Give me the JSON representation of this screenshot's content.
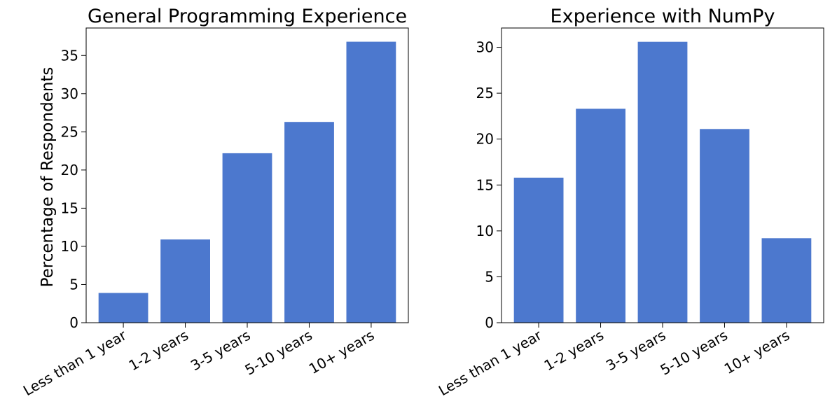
{
  "chart_data": [
    {
      "type": "bar",
      "title": "General Programming Experience",
      "xlabel": "",
      "ylabel": "Percentage of Respondents",
      "categories": [
        "Less than 1 year",
        "1-2 years",
        "3-5 years",
        "5-10 years",
        "10+ years"
      ],
      "values": [
        3.9,
        10.9,
        22.2,
        26.3,
        36.8
      ],
      "ylim": [
        0,
        38.6
      ],
      "yticks": [
        0,
        5,
        10,
        15,
        20,
        25,
        30,
        35
      ],
      "color": "#4c78ce",
      "grid": false
    },
    {
      "type": "bar",
      "title": "Experience with NumPy",
      "xlabel": "",
      "ylabel": "",
      "categories": [
        "Less than 1 year",
        "1-2 years",
        "3-5 years",
        "5-10 years",
        "10+ years"
      ],
      "values": [
        15.8,
        23.3,
        30.6,
        21.1,
        9.2
      ],
      "ylim": [
        0,
        32.1
      ],
      "yticks": [
        0,
        5,
        10,
        15,
        20,
        25,
        30
      ],
      "color": "#4c78ce",
      "grid": false
    }
  ]
}
